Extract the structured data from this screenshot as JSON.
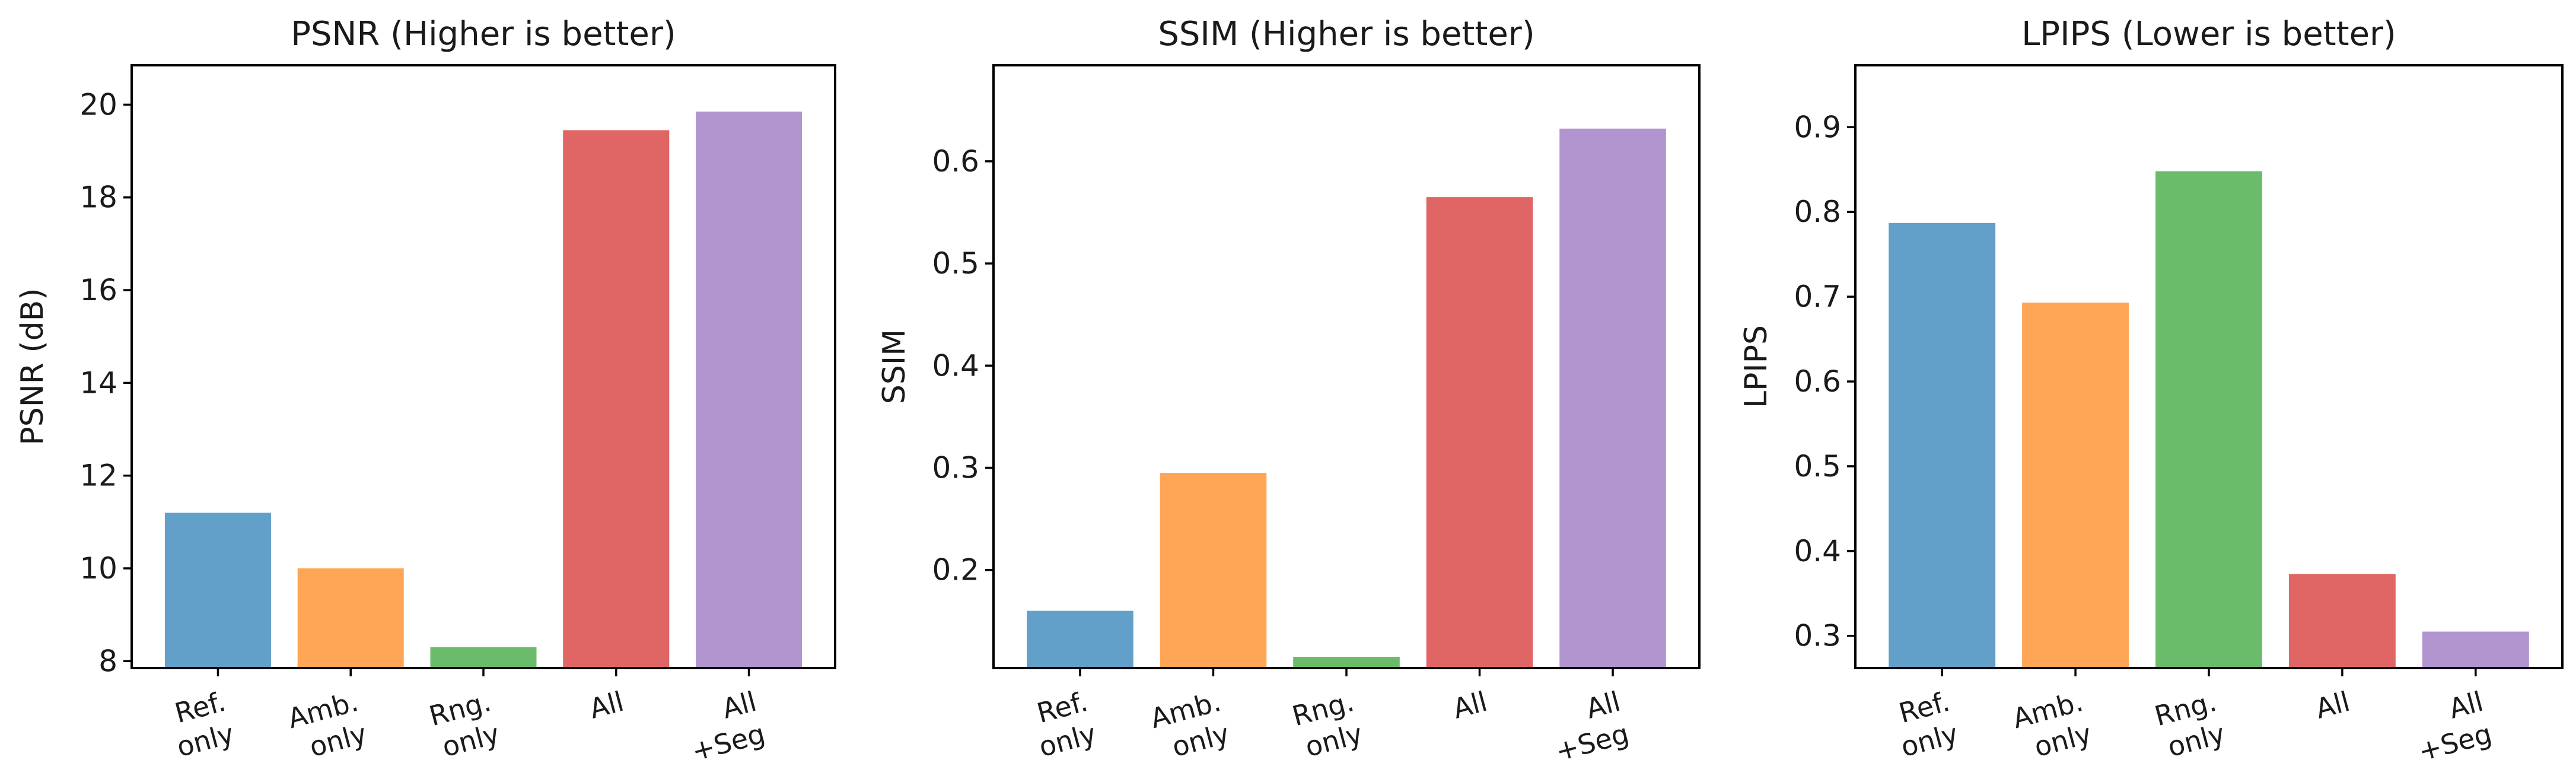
{
  "chart_data": [
    {
      "type": "bar",
      "title": "PSNR (Higher is better)",
      "xlabel": "",
      "ylabel": "PSNR (dB)",
      "categories": [
        "Ref.\nonly",
        "Amb.\nonly",
        "Rng.\nonly",
        "All",
        "All\n+Seg"
      ],
      "values": [
        11.2,
        10.0,
        8.3,
        19.45,
        19.85
      ],
      "colors": [
        "#62A0CA",
        "#FFA556",
        "#6ABC6A",
        "#E06666",
        "#B294CF"
      ],
      "ylim": [
        7.85,
        20.85
      ],
      "yticks": [
        8,
        10,
        12,
        14,
        16,
        18,
        20
      ],
      "grid": false
    },
    {
      "type": "bar",
      "title": "SSIM (Higher is better)",
      "xlabel": "",
      "ylabel": "SSIM",
      "categories": [
        "Ref.\nonly",
        "Amb.\nonly",
        "Rng.\nonly",
        "All",
        "All\n+Seg"
      ],
      "values": [
        0.16,
        0.295,
        0.115,
        0.565,
        0.632
      ],
      "colors": [
        "#62A0CA",
        "#FFA556",
        "#6ABC6A",
        "#E06666",
        "#B294CF"
      ],
      "ylim": [
        0.104,
        0.694
      ],
      "yticks": [
        0.2,
        0.3,
        0.4,
        0.5,
        0.6
      ],
      "grid": false
    },
    {
      "type": "bar",
      "title": "LPIPS (Lower is better)",
      "xlabel": "",
      "ylabel": "LPIPS",
      "categories": [
        "Ref.\nonly",
        "Amb.\nonly",
        "Rng.\nonly",
        "All",
        "All\n+Seg"
      ],
      "values": [
        0.787,
        0.693,
        0.848,
        0.373,
        0.305
      ],
      "colors": [
        "#62A0CA",
        "#FFA556",
        "#6ABC6A",
        "#E06666",
        "#B294CF"
      ],
      "ylim": [
        0.262,
        0.973
      ],
      "yticks": [
        0.3,
        0.4,
        0.5,
        0.6,
        0.7,
        0.8,
        0.9
      ],
      "grid": false
    }
  ]
}
